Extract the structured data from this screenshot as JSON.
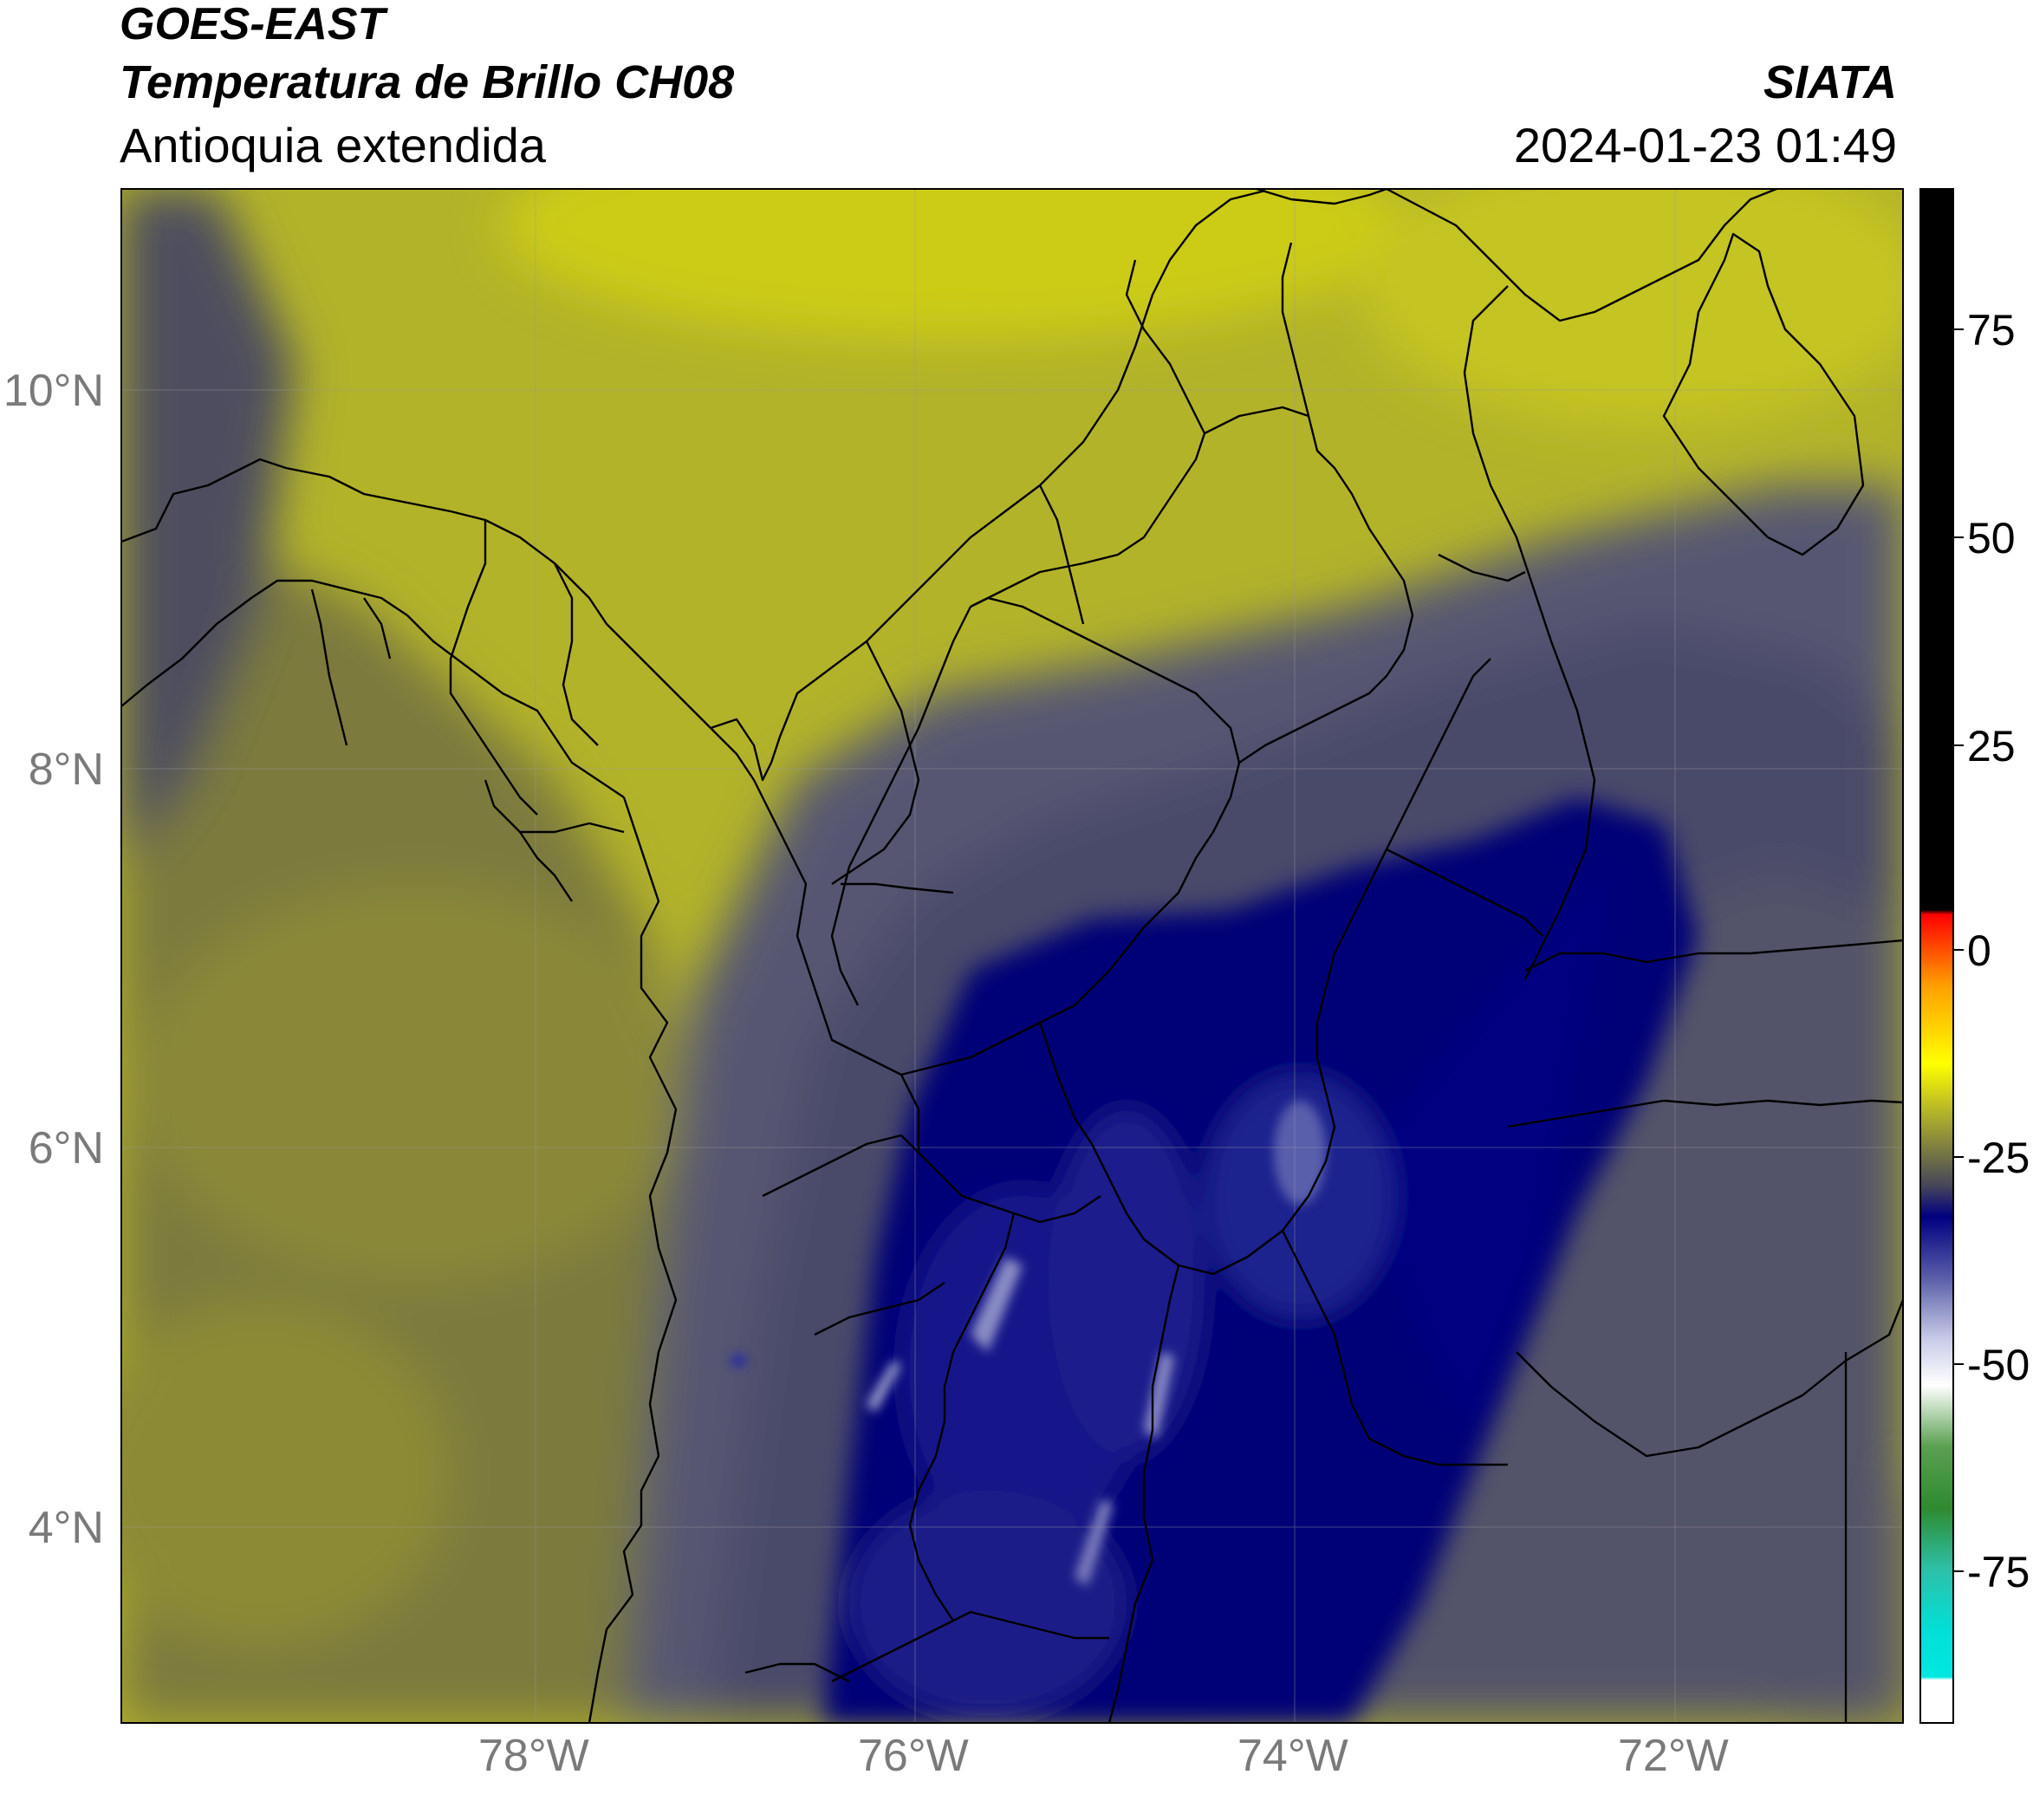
{
  "header": {
    "satellite": "GOES-EAST",
    "product": "Temperatura de Brillo CH08",
    "region": "Antioquia extendida",
    "organization": "SIATA",
    "datetime": "2024-01-23 01:49"
  },
  "map": {
    "lat_range": [
      2.6,
      11.05
    ],
    "lon_range": [
      -80.1,
      -70.7
    ],
    "lat_ticks": [
      "10°N",
      "8°N",
      "6°N",
      "4°N"
    ],
    "lon_ticks": [
      "78°W",
      "76°W",
      "74°W",
      "72°W"
    ],
    "colors": {
      "yellow_field": "#b8b82a",
      "bright_yellow": "#cccc18",
      "olive_field": "#7a7a3a",
      "dark_gray": "#4a4a60",
      "deep_blue": "#020577",
      "mid_blue": "#151a85",
      "pale_blue": "#8a8cc4",
      "border": "#000000"
    }
  },
  "colorbar": {
    "ticks": [
      "75",
      "50",
      "25",
      "0",
      "-25",
      "-50",
      "-75"
    ],
    "stops": [
      "#ffffff",
      "#00e8e0",
      "#2ea8a0",
      "#2f8a30",
      "#4a9a40",
      "#ffffff",
      "#b8bde0",
      "#3a40a0",
      "#000080",
      "#45455a",
      "#b8b828",
      "#ffff00",
      "#ffa000",
      "#ff0000",
      "#000000"
    ]
  }
}
